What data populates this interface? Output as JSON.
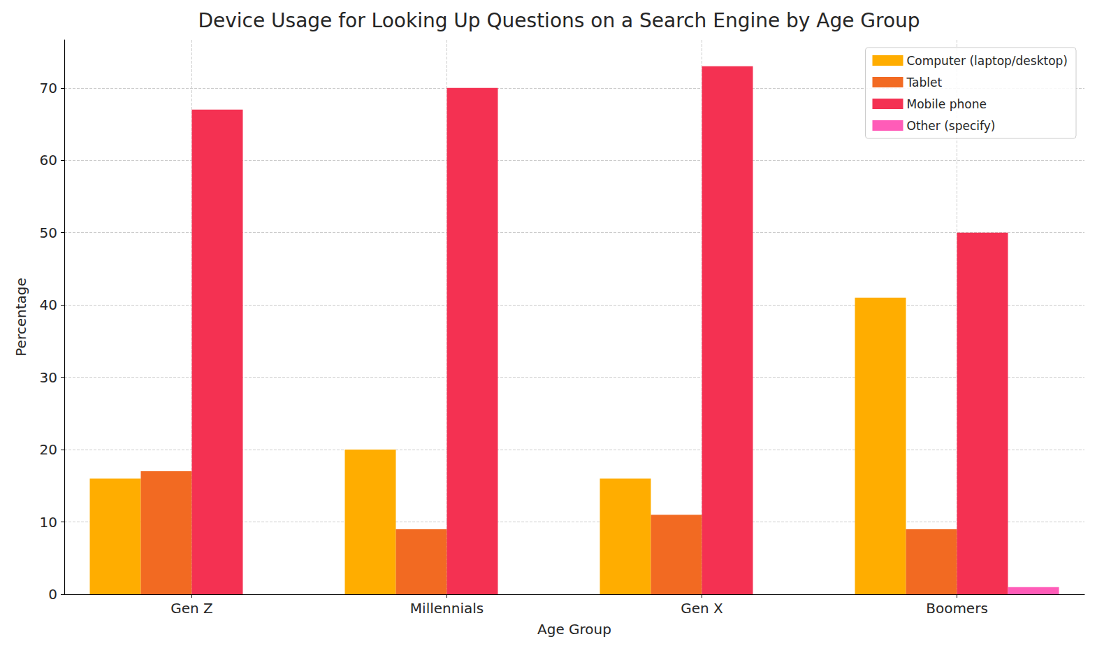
{
  "chart_data": {
    "type": "bar",
    "title": "Device Usage for Looking Up Questions on a Search Engine by Age Group",
    "x_label": "Age Group",
    "y_label": "Percentage",
    "categories": [
      "Gen Z",
      "Millennials",
      "Gen X",
      "Boomers"
    ],
    "series": [
      {
        "name": "Computer (laptop/desktop)",
        "color": "#ffad00",
        "values": [
          16,
          20,
          16,
          41
        ]
      },
      {
        "name": "Tablet",
        "color": "#f26a22",
        "values": [
          17,
          9,
          11,
          9
        ]
      },
      {
        "name": "Mobile phone",
        "color": "#f43152",
        "values": [
          67,
          70,
          73,
          50
        ]
      },
      {
        "name": "Other (specify)",
        "color": "#ff5cb8",
        "values": [
          0,
          0,
          0,
          1
        ]
      }
    ],
    "ylim": [
      0,
      76.65
    ],
    "yticks": [
      0,
      10,
      20,
      30,
      40,
      50,
      60,
      70
    ],
    "grid": true,
    "legend": "upper right"
  }
}
